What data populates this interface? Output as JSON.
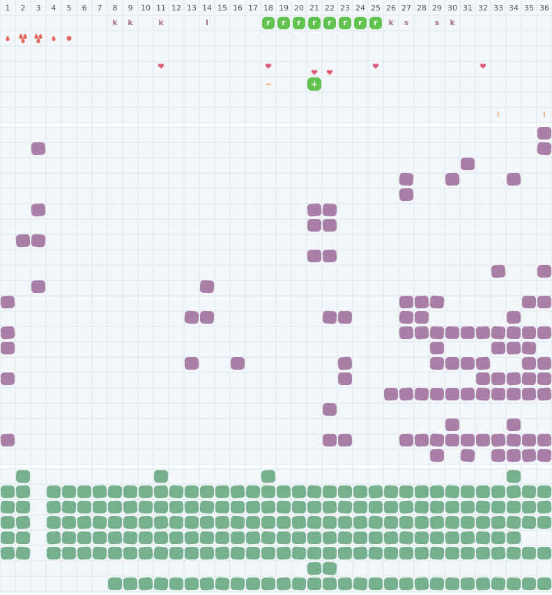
{
  "header": {
    "columns": [
      "1",
      "2",
      "3",
      "4",
      "5",
      "6",
      "7",
      "8",
      "9",
      "10",
      "11",
      "12",
      "13",
      "14",
      "15",
      "16",
      "17",
      "18",
      "19",
      "20",
      "21",
      "22",
      "23",
      "24",
      "25",
      "26",
      "27",
      "28",
      "29",
      "30",
      "31",
      "32",
      "33",
      "34",
      "35",
      "36"
    ]
  },
  "top": {
    "letters": [
      null,
      null,
      null,
      null,
      null,
      null,
      null,
      "k",
      "k",
      null,
      "k",
      null,
      null,
      "l",
      null,
      null,
      null,
      "r",
      "r",
      "r",
      "r",
      "r",
      "r",
      "r",
      "r",
      "k",
      "s",
      null,
      "s",
      "k",
      null,
      null,
      null,
      null,
      null,
      null
    ],
    "markers": [
      null,
      null,
      null,
      null,
      null,
      null,
      null,
      null,
      null,
      null,
      null,
      null,
      null,
      null,
      null,
      null,
      null,
      "−",
      null,
      null,
      "+",
      null,
      null,
      null,
      null,
      null,
      null,
      null,
      null,
      null,
      null,
      null,
      null,
      null,
      null,
      null
    ],
    "bars": [
      null,
      null,
      null,
      null,
      null,
      null,
      null,
      null,
      null,
      null,
      null,
      null,
      null,
      null,
      null,
      null,
      null,
      null,
      null,
      null,
      null,
      null,
      null,
      null,
      null,
      null,
      null,
      null,
      null,
      null,
      null,
      null,
      "I",
      null,
      null,
      "I"
    ]
  }
}
